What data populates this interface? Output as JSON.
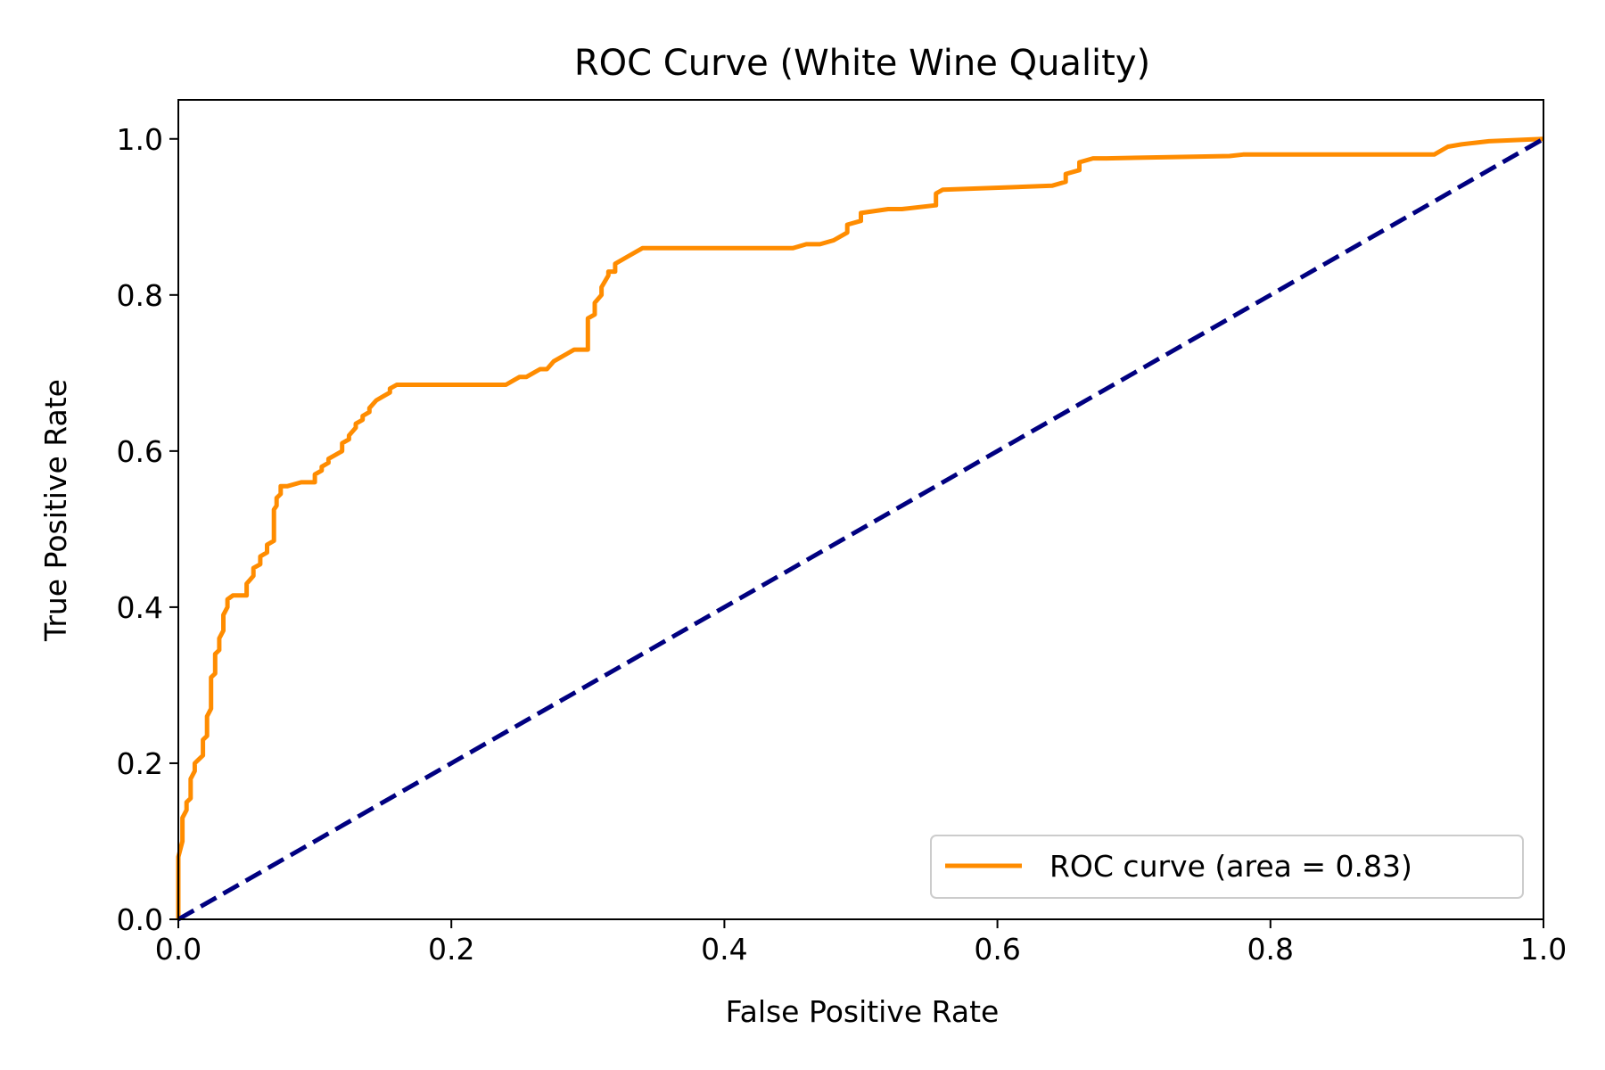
{
  "chart_data": {
    "type": "line",
    "title": "ROC Curve (White Wine Quality)",
    "xlabel": "False Positive Rate",
    "ylabel": "True Positive Rate",
    "xlim": [
      0.0,
      1.0
    ],
    "ylim": [
      0.0,
      1.05
    ],
    "xticks": [
      0.0,
      0.2,
      0.4,
      0.6,
      0.8,
      1.0
    ],
    "yticks": [
      0.0,
      0.2,
      0.4,
      0.6,
      0.8,
      1.0
    ],
    "xtick_labels": [
      "0.0",
      "0.2",
      "0.4",
      "0.6",
      "0.8",
      "1.0"
    ],
    "ytick_labels": [
      "0.0",
      "0.2",
      "0.4",
      "0.6",
      "0.8",
      "1.0"
    ],
    "grid": false,
    "legend_position": "lower-right",
    "series": [
      {
        "name": "ROC curve (area = 0.83)",
        "color": "#ff8c00",
        "style": "solid",
        "x": [
          0.0,
          0.0,
          0.003,
          0.003,
          0.006,
          0.006,
          0.009,
          0.009,
          0.012,
          0.012,
          0.015,
          0.018,
          0.018,
          0.021,
          0.021,
          0.024,
          0.024,
          0.027,
          0.027,
          0.03,
          0.03,
          0.033,
          0.033,
          0.036,
          0.036,
          0.04,
          0.04,
          0.05,
          0.05,
          0.055,
          0.055,
          0.06,
          0.06,
          0.065,
          0.065,
          0.07,
          0.07,
          0.072,
          0.072,
          0.075,
          0.075,
          0.08,
          0.08,
          0.09,
          0.1,
          0.1,
          0.105,
          0.105,
          0.11,
          0.11,
          0.12,
          0.12,
          0.125,
          0.125,
          0.13,
          0.13,
          0.135,
          0.135,
          0.14,
          0.14,
          0.145,
          0.15,
          0.155,
          0.155,
          0.16,
          0.24,
          0.245,
          0.25,
          0.255,
          0.26,
          0.265,
          0.27,
          0.275,
          0.28,
          0.285,
          0.29,
          0.3,
          0.3,
          0.305,
          0.305,
          0.31,
          0.31,
          0.315,
          0.315,
          0.32,
          0.32,
          0.33,
          0.34,
          0.45,
          0.46,
          0.47,
          0.48,
          0.49,
          0.49,
          0.5,
          0.5,
          0.52,
          0.53,
          0.555,
          0.555,
          0.56,
          0.64,
          0.65,
          0.65,
          0.66,
          0.66,
          0.67,
          0.68,
          0.77,
          0.78,
          0.92,
          0.93,
          0.94,
          0.95,
          0.96,
          1.0
        ],
        "y": [
          0.0,
          0.08,
          0.1,
          0.13,
          0.14,
          0.15,
          0.155,
          0.18,
          0.19,
          0.2,
          0.205,
          0.21,
          0.23,
          0.235,
          0.26,
          0.27,
          0.31,
          0.315,
          0.34,
          0.345,
          0.36,
          0.37,
          0.39,
          0.4,
          0.41,
          0.415,
          0.415,
          0.415,
          0.43,
          0.44,
          0.45,
          0.455,
          0.465,
          0.47,
          0.48,
          0.485,
          0.525,
          0.53,
          0.54,
          0.545,
          0.555,
          0.555,
          0.555,
          0.56,
          0.56,
          0.57,
          0.575,
          0.58,
          0.585,
          0.59,
          0.6,
          0.61,
          0.615,
          0.62,
          0.63,
          0.635,
          0.64,
          0.645,
          0.65,
          0.655,
          0.665,
          0.67,
          0.675,
          0.68,
          0.685,
          0.685,
          0.69,
          0.695,
          0.695,
          0.7,
          0.705,
          0.705,
          0.715,
          0.72,
          0.725,
          0.73,
          0.73,
          0.77,
          0.775,
          0.79,
          0.8,
          0.81,
          0.825,
          0.83,
          0.83,
          0.84,
          0.85,
          0.86,
          0.86,
          0.865,
          0.865,
          0.87,
          0.88,
          0.89,
          0.895,
          0.905,
          0.91,
          0.91,
          0.915,
          0.93,
          0.935,
          0.94,
          0.945,
          0.955,
          0.96,
          0.97,
          0.975,
          0.975,
          0.978,
          0.98,
          0.98,
          0.99,
          0.993,
          0.995,
          0.997,
          1.0
        ]
      },
      {
        "name": "",
        "color": "#000080",
        "style": "dashed",
        "x": [
          0.0,
          1.0
        ],
        "y": [
          0.0,
          1.0
        ]
      }
    ]
  }
}
